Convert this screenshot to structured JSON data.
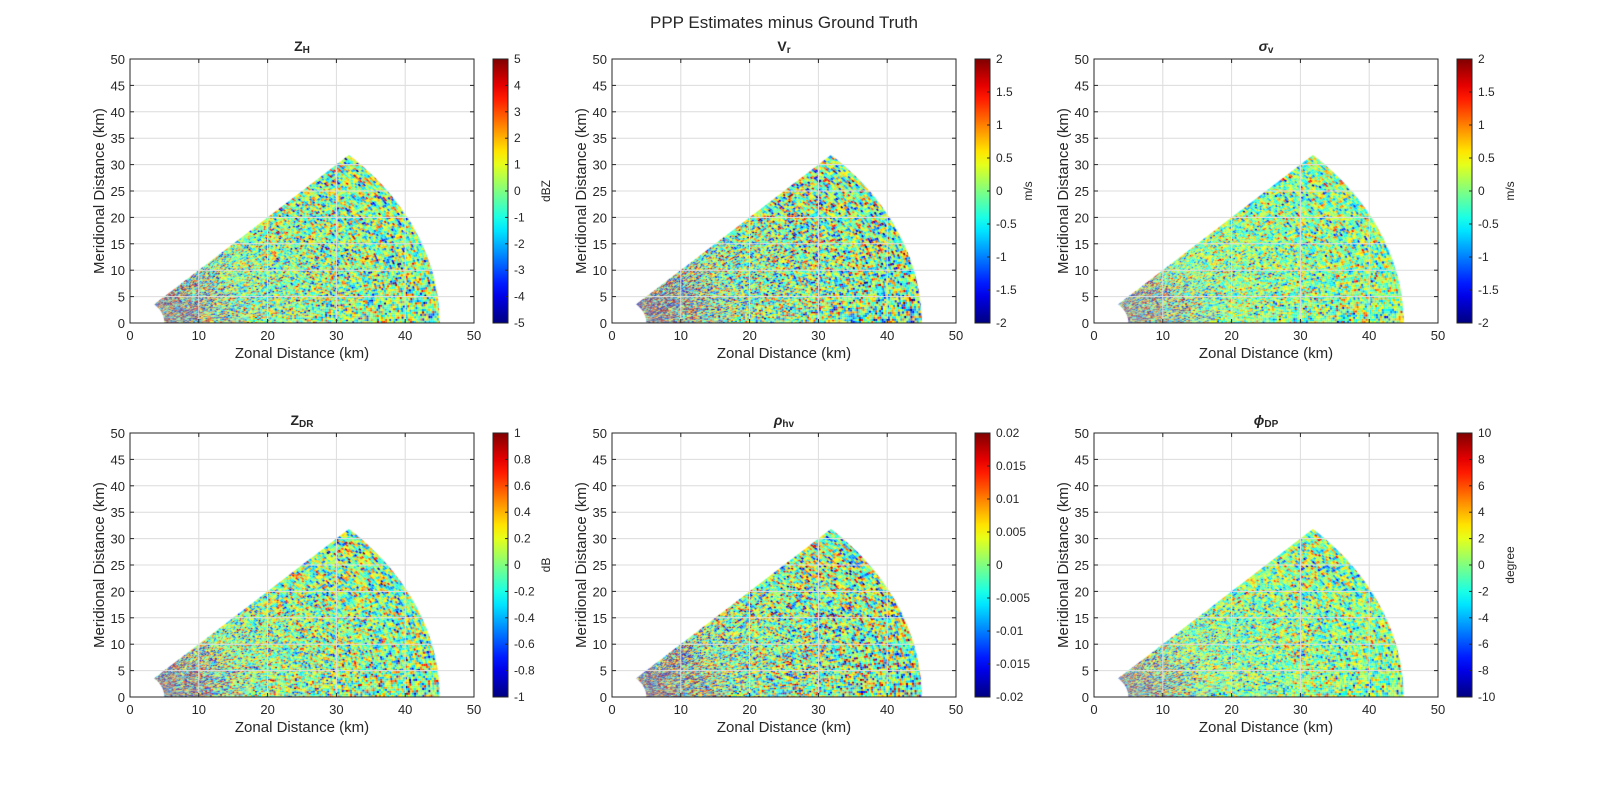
{
  "figure_title": "PPP Estimates minus Ground Truth",
  "chart_data": [
    {
      "type": "heatmap",
      "title_base": "Z",
      "title_sub": "H",
      "xlabel": "Zonal Distance (km)",
      "ylabel": "Meridional Distance (km)",
      "xlim": [
        0,
        50
      ],
      "ylim": [
        0,
        50
      ],
      "xticks": [
        "0",
        "10",
        "20",
        "30",
        "40",
        "50"
      ],
      "yticks": [
        "0",
        "5",
        "10",
        "15",
        "20",
        "25",
        "30",
        "35",
        "40",
        "45",
        "50"
      ],
      "grid": true,
      "sector": {
        "range_km": [
          5,
          45
        ],
        "azimuth_deg": [
          0,
          45
        ]
      },
      "colorbar": {
        "min": -5,
        "max": 5,
        "ticks": [
          "5",
          "4",
          "3",
          "2",
          "1",
          "0",
          "-1",
          "-2",
          "-3",
          "-4",
          "-5"
        ],
        "label": "dBZ",
        "colormap": "jet"
      },
      "noise_scale": 0.35
    },
    {
      "type": "heatmap",
      "title_base": "V",
      "title_sub": "r",
      "xlabel": "Zonal Distance (km)",
      "ylabel": "Meridional Distance (km)",
      "xlim": [
        0,
        50
      ],
      "ylim": [
        0,
        50
      ],
      "xticks": [
        "0",
        "10",
        "20",
        "30",
        "40",
        "50"
      ],
      "yticks": [
        "0",
        "5",
        "10",
        "15",
        "20",
        "25",
        "30",
        "35",
        "40",
        "45",
        "50"
      ],
      "grid": true,
      "sector": {
        "range_km": [
          5,
          45
        ],
        "azimuth_deg": [
          0,
          45
        ]
      },
      "colorbar": {
        "min": -2,
        "max": 2,
        "ticks": [
          "2",
          "1.5",
          "1",
          "0.5",
          "0",
          "-0.5",
          "-1",
          "-1.5",
          "-2"
        ],
        "label": "m/s",
        "colormap": "jet"
      },
      "noise_scale": 0.4
    },
    {
      "type": "heatmap",
      "title_base": "σ",
      "title_sub": "v",
      "xlabel": "Zonal Distance (km)",
      "ylabel": "Meridional Distance (km)",
      "xlim": [
        0,
        50
      ],
      "ylim": [
        0,
        50
      ],
      "xticks": [
        "0",
        "10",
        "20",
        "30",
        "40",
        "50"
      ],
      "yticks": [
        "0",
        "5",
        "10",
        "15",
        "20",
        "25",
        "30",
        "35",
        "40",
        "45",
        "50"
      ],
      "grid": true,
      "sector": {
        "range_km": [
          5,
          45
        ],
        "azimuth_deg": [
          0,
          45
        ]
      },
      "colorbar": {
        "min": -2,
        "max": 2,
        "ticks": [
          "2",
          "1.5",
          "1",
          "0.5",
          "0",
          "-0.5",
          "-1",
          "-1.5",
          "-2"
        ],
        "label": "m/s",
        "colormap": "jet"
      },
      "noise_scale": 0.3
    },
    {
      "type": "heatmap",
      "title_base": "Z",
      "title_sub": "DR",
      "xlabel": "Zonal Distance (km)",
      "ylabel": "Meridional Distance (km)",
      "xlim": [
        0,
        50
      ],
      "ylim": [
        0,
        50
      ],
      "xticks": [
        "0",
        "10",
        "20",
        "30",
        "40",
        "50"
      ],
      "yticks": [
        "0",
        "5",
        "10",
        "15",
        "20",
        "25",
        "30",
        "35",
        "40",
        "45",
        "50"
      ],
      "grid": true,
      "sector": {
        "range_km": [
          5,
          45
        ],
        "azimuth_deg": [
          0,
          45
        ]
      },
      "colorbar": {
        "min": -1,
        "max": 1,
        "ticks": [
          "1",
          "0.8",
          "0.6",
          "0.4",
          "0.2",
          "0",
          "-0.2",
          "-0.4",
          "-0.6",
          "-0.8",
          "-1"
        ],
        "label": "dB",
        "colormap": "jet"
      },
      "noise_scale": 0.35
    },
    {
      "type": "heatmap",
      "title_base": "ρ",
      "title_sub": "hv",
      "xlabel": "Zonal Distance (km)",
      "ylabel": "Meridional Distance (km)",
      "xlim": [
        0,
        50
      ],
      "ylim": [
        0,
        50
      ],
      "xticks": [
        "0",
        "10",
        "20",
        "30",
        "40",
        "50"
      ],
      "yticks": [
        "0",
        "5",
        "10",
        "15",
        "20",
        "25",
        "30",
        "35",
        "40",
        "45",
        "50"
      ],
      "grid": true,
      "sector": {
        "range_km": [
          5,
          45
        ],
        "azimuth_deg": [
          0,
          45
        ]
      },
      "colorbar": {
        "min": -0.02,
        "max": 0.02,
        "ticks": [
          "0.02",
          "0.015",
          "0.01",
          "0.005",
          "0",
          "-0.005",
          "-0.01",
          "-0.015",
          "-0.02"
        ],
        "label": "",
        "colormap": "jet"
      },
      "noise_scale": 0.4
    },
    {
      "type": "heatmap",
      "title_base": "ϕ",
      "title_sub": "DP",
      "xlabel": "Zonal Distance (km)",
      "ylabel": "Meridional Distance (km)",
      "xlim": [
        0,
        50
      ],
      "ylim": [
        0,
        50
      ],
      "xticks": [
        "0",
        "10",
        "20",
        "30",
        "40",
        "50"
      ],
      "yticks": [
        "0",
        "5",
        "10",
        "15",
        "20",
        "25",
        "30",
        "35",
        "40",
        "45",
        "50"
      ],
      "grid": true,
      "sector": {
        "range_km": [
          5,
          45
        ],
        "azimuth_deg": [
          0,
          45
        ]
      },
      "colorbar": {
        "min": -10,
        "max": 10,
        "ticks": [
          "10",
          "8",
          "6",
          "4",
          "2",
          "0",
          "-2",
          "-4",
          "-6",
          "-8",
          "-10"
        ],
        "label": "degree",
        "colormap": "jet"
      },
      "noise_scale": 0.3
    }
  ]
}
